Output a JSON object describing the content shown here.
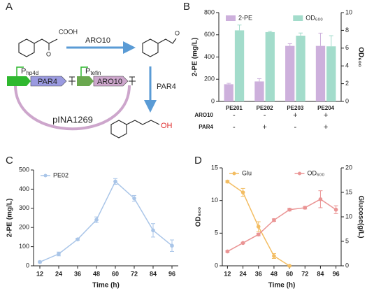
{
  "panel_labels": [
    "A",
    "B",
    "C",
    "D"
  ],
  "diagram": {
    "reaction_arrows": [
      {
        "label": "ARO10"
      },
      {
        "label": "PAR4"
      }
    ],
    "substituents": {
      "acid": "COOH",
      "keto_oxygen": "O",
      "aldehyde_oxygen": "O",
      "alcohol": "OH"
    },
    "promoters": [
      {
        "main": "P",
        "sub": "hp4d"
      },
      {
        "main": "P",
        "sub": "tefin"
      }
    ],
    "genes": [
      "PAR4",
      "ARO10"
    ],
    "plasmid": "pINA1269"
  },
  "chart_data": [
    {
      "type": "bar",
      "ylabel": "2-PE (mg/L)",
      "y2label": "OD₆₀₀",
      "categories": [
        "PE201",
        "PE202",
        "PE203",
        "PE204"
      ],
      "series": [
        {
          "name": "2-PE",
          "color": "#cdb0dc",
          "values": [
            155,
            180,
            500,
            500
          ],
          "errors": [
            8,
            25,
            20,
            115
          ]
        },
        {
          "name": "OD₆₀₀",
          "color": "#a3dccb",
          "axis": "y2",
          "values": [
            8.0,
            7.8,
            7.4,
            6.2
          ],
          "errors": [
            0.6,
            0.1,
            0.3,
            1.2
          ]
        }
      ],
      "ylim": [
        0,
        800
      ],
      "yticks": [
        0,
        200,
        400,
        600,
        800
      ],
      "y2lim": [
        0,
        10
      ],
      "y2ticks": [
        0,
        2,
        4,
        6,
        8,
        10
      ],
      "genotype_rows": [
        {
          "label": "ARO10",
          "values": [
            "-",
            "-",
            "+",
            "+"
          ]
        },
        {
          "label": "PAR4",
          "values": [
            "-",
            "+",
            "-",
            "+"
          ]
        }
      ]
    },
    {
      "type": "line",
      "xlabel": "Time (h)",
      "ylabel": "2-PE (mg/L)",
      "x": [
        12,
        24,
        36,
        48,
        60,
        72,
        84,
        96
      ],
      "series": [
        {
          "name": "PE02",
          "color": "#a9c5e8",
          "values": [
            20,
            62,
            138,
            240,
            440,
            352,
            185,
            105
          ],
          "errors": [
            5,
            10,
            5,
            15,
            15,
            15,
            35,
            30
          ]
        }
      ],
      "xlim": [
        8,
        100
      ],
      "xticks": [
        12,
        24,
        36,
        48,
        60,
        72,
        84,
        96
      ],
      "ylim": [
        0,
        500
      ],
      "yticks": [
        0,
        100,
        200,
        300,
        400,
        500
      ]
    },
    {
      "type": "line",
      "xlabel": "Time (h)",
      "ylabel": "OD₆₀₀",
      "y2label": "Glucose(g/L)",
      "x": [
        12,
        24,
        36,
        48,
        60,
        72,
        84,
        96
      ],
      "series": [
        {
          "name": "Glu",
          "color": "#f3bd62",
          "axis": "y2",
          "values": [
            17.2,
            15,
            8,
            2,
            0,
            null,
            null,
            null
          ],
          "errors": [
            0.2,
            0.8,
            1,
            0.5,
            0.1,
            null,
            null,
            null
          ]
        },
        {
          "name": "OD₆₀₀",
          "color": "#ea9494",
          "values": [
            2.2,
            3.5,
            4.8,
            7,
            8.6,
            8.9,
            10.2,
            8.6
          ],
          "errors": [
            0.1,
            0.1,
            0.2,
            0.2,
            0.2,
            0.2,
            1.3,
            0.6
          ]
        }
      ],
      "xlim": [
        8,
        100
      ],
      "xticks": [
        12,
        24,
        36,
        48,
        60,
        72,
        84,
        96
      ],
      "ylim": [
        0,
        15
      ],
      "yticks": [
        0,
        5,
        10,
        15
      ],
      "y2lim": [
        0,
        20
      ],
      "y2ticks": [
        0,
        5,
        10,
        15,
        20
      ]
    }
  ]
}
